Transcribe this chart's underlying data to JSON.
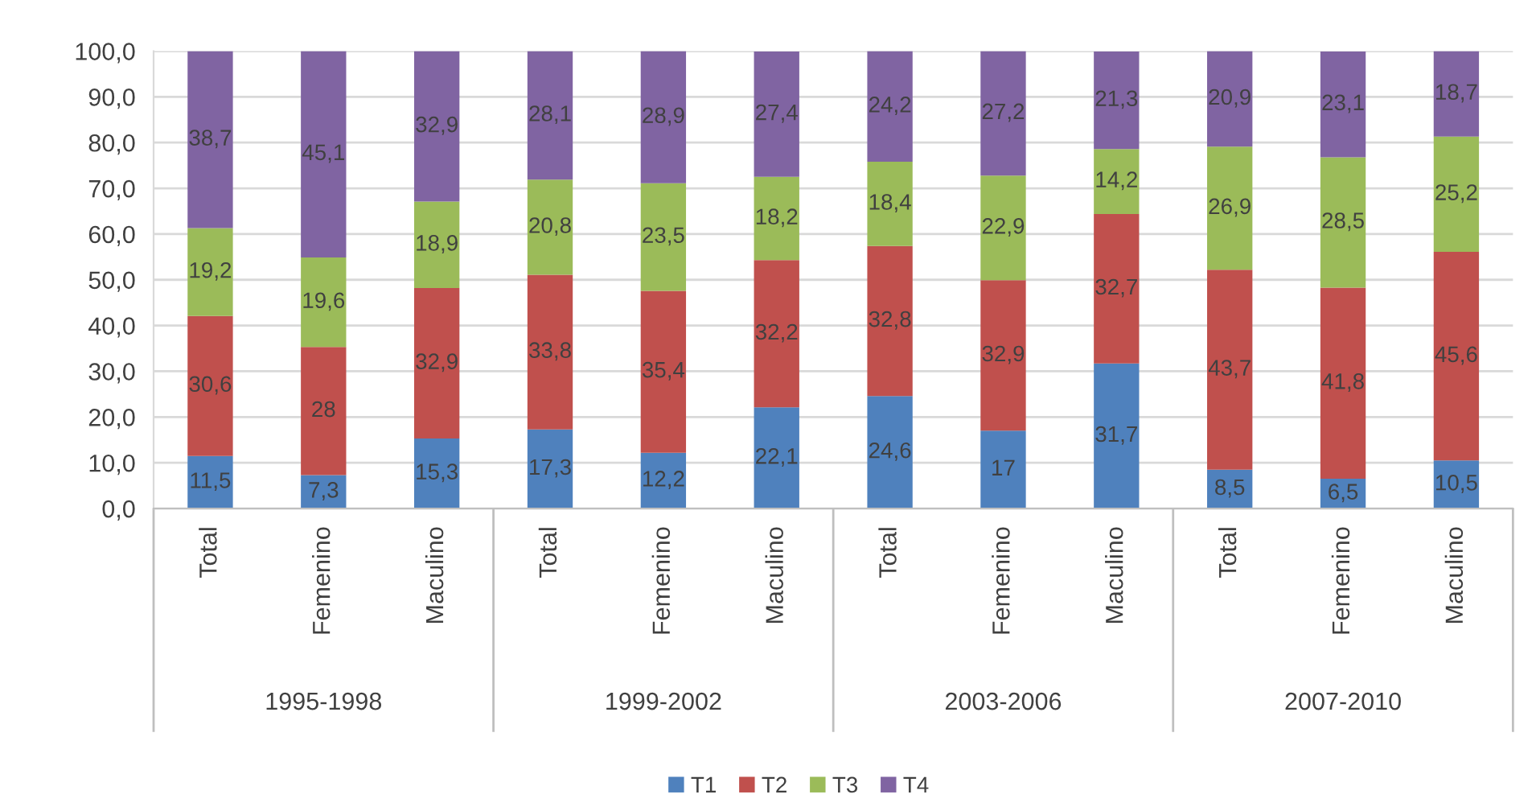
{
  "chart_data": {
    "type": "bar",
    "stacked": true,
    "categories": [
      "Total",
      "Femenino",
      "Maculino",
      "Total",
      "Femenino",
      "Maculino",
      "Total",
      "Femenino",
      "Maculino",
      "Total",
      "Femenino",
      "Maculino"
    ],
    "annotations": [
      "1995-1998",
      "1999-2002",
      "2003-2006",
      "2007-2010"
    ],
    "series": [
      {
        "name": "T1",
        "color": "#4f81bd",
        "values": [
          11.5,
          7.3,
          15.3,
          17.3,
          12.2,
          22.1,
          24.6,
          17,
          31.7,
          8.5,
          6.5,
          10.5
        ],
        "value_labels": [
          "11,5",
          "7,3",
          "15,3",
          "17,3",
          "12,2",
          "22,1",
          "24,6",
          "17",
          "31,7",
          "8,5",
          "6,5",
          "10,5"
        ]
      },
      {
        "name": "T2",
        "color": "#c0504d",
        "values": [
          30.6,
          28,
          32.9,
          33.8,
          35.4,
          32.2,
          32.8,
          32.9,
          32.7,
          43.7,
          41.8,
          45.6
        ],
        "value_labels": [
          "30,6",
          "28",
          "32,9",
          "33,8",
          "35,4",
          "32,2",
          "32,8",
          "32,9",
          "32,7",
          "43,7",
          "41,8",
          "45,6"
        ]
      },
      {
        "name": "T3",
        "color": "#9bbb59",
        "values": [
          19.2,
          19.6,
          18.9,
          20.8,
          23.5,
          18.2,
          18.4,
          22.9,
          14.2,
          26.9,
          28.5,
          25.2
        ],
        "value_labels": [
          "19,2",
          "19,6",
          "18,9",
          "20,8",
          "23,5",
          "18,2",
          "18,4",
          "22,9",
          "14,2",
          "26,9",
          "28,5",
          "25,2"
        ]
      },
      {
        "name": "T4",
        "color": "#8064a2",
        "values": [
          38.7,
          45.1,
          32.9,
          28.1,
          28.9,
          27.4,
          24.2,
          27.2,
          21.3,
          20.9,
          23.1,
          18.7
        ],
        "value_labels": [
          "38,7",
          "45,1",
          "32,9",
          "28,1",
          "28,9",
          "27,4",
          "24,2",
          "27,2",
          "21,3",
          "20,9",
          "23,1",
          "18,7"
        ]
      }
    ],
    "ylim": [
      0,
      100
    ],
    "yticks": [
      {
        "value": 0,
        "label": "0,0"
      },
      {
        "value": 10,
        "label": "10,0"
      },
      {
        "value": 20,
        "label": "20,0"
      },
      {
        "value": 30,
        "label": "30,0"
      },
      {
        "value": 40,
        "label": "40,0"
      },
      {
        "value": 50,
        "label": "50,0"
      },
      {
        "value": 60,
        "label": "60,0"
      },
      {
        "value": 70,
        "label": "70,0"
      },
      {
        "value": 80,
        "label": "80,0"
      },
      {
        "value": 90,
        "label": "90,0"
      },
      {
        "value": 100,
        "label": "100,0"
      }
    ],
    "grid": "y",
    "legend": "bottom"
  }
}
